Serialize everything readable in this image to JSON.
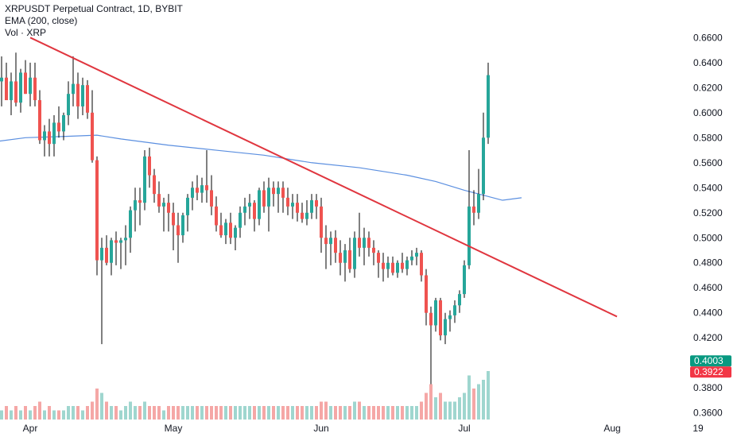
{
  "legend": {
    "line1": "XRPUSDT Perpetual Contract, 1D, BYBIT",
    "line2": "EMA (200, close)",
    "line3": "Vol · XRP"
  },
  "price_tags": {
    "last": "0.4003",
    "last_color": "#089981",
    "prev": "0.3922",
    "prev_color": "#f23645"
  },
  "colors": {
    "up": "#26a69a",
    "down": "#ef5350",
    "vol_up": "#9fd6cf",
    "vol_down": "#f5a7a6",
    "ema": "#5b8fe0",
    "trendline": "#e0363f",
    "text": "#131722"
  },
  "chart_data": {
    "type": "candlestick",
    "y_ticks": [
      "0.6600",
      "0.6400",
      "0.6200",
      "0.6000",
      "0.5800",
      "0.5600",
      "0.5400",
      "0.5200",
      "0.5000",
      "0.4800",
      "0.4600",
      "0.4400",
      "0.4200",
      "0.3800",
      "0.3600"
    ],
    "ylim": [
      0.356,
      0.671
    ],
    "x_ticks": [
      {
        "label": "Apr",
        "day": 1
      },
      {
        "label": "May",
        "day": 31
      },
      {
        "label": "Jun",
        "day": 62
      },
      {
        "label": "Jul",
        "day": 92
      },
      {
        "label": "Aug",
        "day": 123
      },
      {
        "label": "19",
        "day": 141
      }
    ],
    "x_range_days": [
      -6,
      150
    ],
    "candles": [
      [
        0.625,
        0.645,
        0.605,
        0.628,
        1
      ],
      [
        0.628,
        0.64,
        0.61,
        0.61,
        2
      ],
      [
        0.61,
        0.632,
        0.598,
        0.625,
        1
      ],
      [
        0.625,
        0.648,
        0.605,
        0.608,
        2
      ],
      [
        0.608,
        0.635,
        0.6,
        0.632,
        1
      ],
      [
        0.632,
        0.642,
        0.615,
        0.615,
        2
      ],
      [
        0.615,
        0.64,
        0.605,
        0.628,
        1
      ],
      [
        0.628,
        0.64,
        0.605,
        0.61,
        2
      ],
      [
        0.61,
        0.618,
        0.575,
        0.578,
        3
      ],
      [
        0.578,
        0.59,
        0.565,
        0.585,
        1
      ],
      [
        0.585,
        0.595,
        0.565,
        0.575,
        2
      ],
      [
        0.575,
        0.598,
        0.565,
        0.592,
        1
      ],
      [
        0.592,
        0.605,
        0.58,
        0.585,
        1
      ],
      [
        0.585,
        0.6,
        0.578,
        0.598,
        1
      ],
      [
        0.598,
        0.625,
        0.59,
        0.615,
        2
      ],
      [
        0.615,
        0.645,
        0.605,
        0.623,
        2
      ],
      [
        0.623,
        0.632,
        0.595,
        0.605,
        2
      ],
      [
        0.605,
        0.628,
        0.598,
        0.622,
        1
      ],
      [
        0.622,
        0.626,
        0.595,
        0.6,
        2
      ],
      [
        0.6,
        0.618,
        0.56,
        0.562,
        3
      ],
      [
        0.562,
        0.565,
        0.47,
        0.482,
        6
      ],
      [
        0.482,
        0.5,
        0.415,
        0.492,
        5
      ],
      [
        0.492,
        0.502,
        0.478,
        0.48,
        3
      ],
      [
        0.48,
        0.5,
        0.47,
        0.498,
        2
      ],
      [
        0.498,
        0.505,
        0.478,
        0.496,
        2
      ],
      [
        0.496,
        0.5,
        0.475,
        0.498,
        1
      ],
      [
        0.498,
        0.51,
        0.478,
        0.5,
        2
      ],
      [
        0.5,
        0.525,
        0.488,
        0.522,
        3
      ],
      [
        0.522,
        0.54,
        0.505,
        0.53,
        2
      ],
      [
        0.53,
        0.54,
        0.51,
        0.528,
        2
      ],
      [
        0.528,
        0.57,
        0.522,
        0.565,
        3
      ],
      [
        0.565,
        0.572,
        0.54,
        0.55,
        2
      ],
      [
        0.55,
        0.555,
        0.528,
        0.535,
        2
      ],
      [
        0.535,
        0.545,
        0.52,
        0.525,
        2
      ],
      [
        0.525,
        0.532,
        0.505,
        0.528,
        1
      ],
      [
        0.528,
        0.535,
        0.505,
        0.52,
        2
      ],
      [
        0.52,
        0.528,
        0.49,
        0.51,
        2
      ],
      [
        0.51,
        0.52,
        0.48,
        0.502,
        2
      ],
      [
        0.502,
        0.52,
        0.496,
        0.518,
        2
      ],
      [
        0.518,
        0.535,
        0.505,
        0.532,
        2
      ],
      [
        0.532,
        0.545,
        0.522,
        0.54,
        2
      ],
      [
        0.54,
        0.55,
        0.53,
        0.536,
        2
      ],
      [
        0.536,
        0.548,
        0.528,
        0.542,
        2
      ],
      [
        0.542,
        0.57,
        0.528,
        0.538,
        2
      ],
      [
        0.538,
        0.55,
        0.518,
        0.525,
        2
      ],
      [
        0.525,
        0.533,
        0.505,
        0.51,
        2
      ],
      [
        0.51,
        0.52,
        0.5,
        0.502,
        2
      ],
      [
        0.502,
        0.515,
        0.495,
        0.512,
        2
      ],
      [
        0.512,
        0.52,
        0.495,
        0.5,
        2
      ],
      [
        0.5,
        0.51,
        0.49,
        0.508,
        2
      ],
      [
        0.508,
        0.525,
        0.5,
        0.52,
        2
      ],
      [
        0.52,
        0.532,
        0.51,
        0.525,
        2
      ],
      [
        0.525,
        0.535,
        0.515,
        0.528,
        2
      ],
      [
        0.528,
        0.53,
        0.505,
        0.515,
        2
      ],
      [
        0.515,
        0.54,
        0.51,
        0.538,
        2
      ],
      [
        0.538,
        0.545,
        0.52,
        0.525,
        2
      ],
      [
        0.525,
        0.548,
        0.505,
        0.54,
        2
      ],
      [
        0.54,
        0.545,
        0.525,
        0.535,
        2
      ],
      [
        0.535,
        0.545,
        0.52,
        0.54,
        2
      ],
      [
        0.54,
        0.545,
        0.52,
        0.532,
        2
      ],
      [
        0.532,
        0.54,
        0.518,
        0.525,
        2
      ],
      [
        0.525,
        0.535,
        0.515,
        0.528,
        2
      ],
      [
        0.528,
        0.535,
        0.513,
        0.52,
        2
      ],
      [
        0.52,
        0.528,
        0.512,
        0.515,
        2
      ],
      [
        0.515,
        0.53,
        0.51,
        0.52,
        2
      ],
      [
        0.52,
        0.535,
        0.515,
        0.53,
        2
      ],
      [
        0.53,
        0.535,
        0.515,
        0.525,
        2
      ],
      [
        0.525,
        0.532,
        0.488,
        0.5,
        3
      ],
      [
        0.5,
        0.51,
        0.475,
        0.495,
        3
      ],
      [
        0.495,
        0.505,
        0.478,
        0.5,
        2
      ],
      [
        0.5,
        0.506,
        0.48,
        0.488,
        2
      ],
      [
        0.488,
        0.498,
        0.47,
        0.48,
        2
      ],
      [
        0.48,
        0.495,
        0.465,
        0.49,
        2
      ],
      [
        0.49,
        0.5,
        0.472,
        0.475,
        2
      ],
      [
        0.475,
        0.505,
        0.468,
        0.5,
        3
      ],
      [
        0.5,
        0.52,
        0.485,
        0.492,
        3
      ],
      [
        0.492,
        0.508,
        0.478,
        0.5,
        2
      ],
      [
        0.5,
        0.505,
        0.485,
        0.492,
        2
      ],
      [
        0.492,
        0.498,
        0.478,
        0.488,
        2
      ],
      [
        0.488,
        0.49,
        0.468,
        0.48,
        2
      ],
      [
        0.48,
        0.488,
        0.465,
        0.475,
        2
      ],
      [
        0.475,
        0.485,
        0.468,
        0.48,
        2
      ],
      [
        0.48,
        0.485,
        0.47,
        0.472,
        2
      ],
      [
        0.472,
        0.482,
        0.468,
        0.48,
        2
      ],
      [
        0.48,
        0.488,
        0.472,
        0.475,
        2
      ],
      [
        0.475,
        0.485,
        0.47,
        0.482,
        2
      ],
      [
        0.482,
        0.49,
        0.478,
        0.485,
        2
      ],
      [
        0.485,
        0.492,
        0.478,
        0.488,
        2
      ],
      [
        0.488,
        0.49,
        0.465,
        0.47,
        3
      ],
      [
        0.47,
        0.475,
        0.43,
        0.44,
        5
      ],
      [
        0.44,
        0.445,
        0.383,
        0.43,
        7
      ],
      [
        0.43,
        0.452,
        0.425,
        0.45,
        4
      ],
      [
        0.45,
        0.452,
        0.418,
        0.422,
        5
      ],
      [
        0.422,
        0.44,
        0.415,
        0.435,
        3
      ],
      [
        0.435,
        0.442,
        0.425,
        0.438,
        3
      ],
      [
        0.438,
        0.45,
        0.432,
        0.446,
        3
      ],
      [
        0.446,
        0.458,
        0.44,
        0.455,
        4
      ],
      [
        0.455,
        0.482,
        0.452,
        0.478,
        5
      ],
      [
        0.478,
        0.57,
        0.475,
        0.525,
        9
      ],
      [
        0.525,
        0.538,
        0.51,
        0.52,
        6
      ],
      [
        0.52,
        0.555,
        0.515,
        0.535,
        7
      ],
      [
        0.535,
        0.6,
        0.53,
        0.58,
        8
      ],
      [
        0.58,
        0.64,
        0.575,
        0.63,
        10
      ]
    ],
    "ema": [
      [
        -6,
        0.577
      ],
      [
        0,
        0.58
      ],
      [
        8,
        0.581
      ],
      [
        15,
        0.582
      ],
      [
        20,
        0.579
      ],
      [
        30,
        0.574
      ],
      [
        40,
        0.57
      ],
      [
        50,
        0.566
      ],
      [
        60,
        0.56
      ],
      [
        70,
        0.556
      ],
      [
        80,
        0.55
      ],
      [
        86,
        0.545
      ],
      [
        92,
        0.538
      ],
      [
        96,
        0.534
      ],
      [
        100,
        0.53
      ],
      [
        104,
        0.532
      ]
    ],
    "trendline": [
      [
        1,
        0.66
      ],
      [
        124,
        0.437
      ]
    ]
  }
}
